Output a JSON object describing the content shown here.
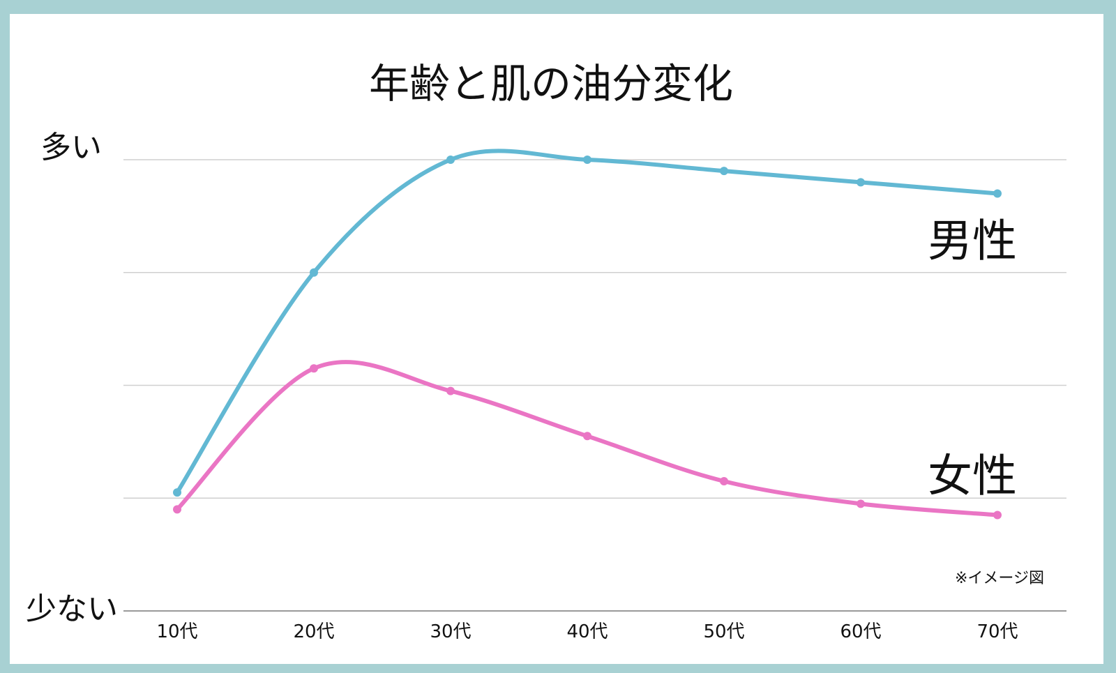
{
  "chart_data": {
    "type": "line",
    "title": "年齢と肌の油分変化",
    "y_top_label": "多い",
    "y_bottom_label": "少ない",
    "categories": [
      "10代",
      "20代",
      "30代",
      "40代",
      "50代",
      "60代",
      "70代"
    ],
    "ylim": [
      0,
      4
    ],
    "grid": true,
    "note": "※イメージ図",
    "series": [
      {
        "name": "男性",
        "color": "#62b8d3",
        "values": [
          1.05,
          3.0,
          4.0,
          4.0,
          3.9,
          3.8,
          3.7
        ]
      },
      {
        "name": "女性",
        "color": "#ea75c4",
        "values": [
          0.9,
          2.15,
          1.95,
          1.55,
          1.15,
          0.95,
          0.85
        ]
      }
    ]
  }
}
